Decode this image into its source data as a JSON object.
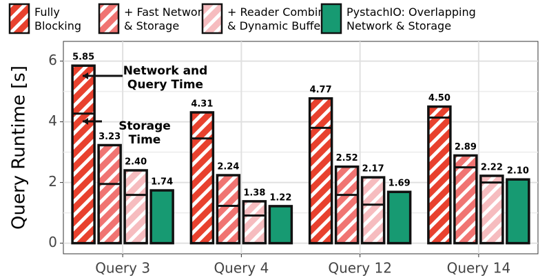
{
  "chart_data": {
    "type": "bar",
    "y_label": "Query Runtime [s]",
    "categories": [
      "Query 3",
      "Query 4",
      "Query 12",
      "Query 14"
    ],
    "series": [
      {
        "name": "Fully\nBlocking",
        "color": "#e8412e",
        "hatch": true,
        "values": [
          5.85,
          4.31,
          4.77,
          4.5
        ],
        "value_labels": [
          "5.85",
          "4.31",
          "4.77",
          "4.50"
        ],
        "storage_time": [
          4.27,
          3.45,
          3.8,
          4.14
        ]
      },
      {
        "name": "+ Fast Network\n& Storage",
        "color": "#f07472",
        "hatch": true,
        "values": [
          3.23,
          2.24,
          2.52,
          2.89
        ],
        "value_labels": [
          "3.23",
          "2.24",
          "2.52",
          "2.89"
        ],
        "storage_time": [
          1.95,
          1.23,
          1.59,
          2.5
        ]
      },
      {
        "name": "+ Reader Combining\n& Dynamic Buffering",
        "color": "#f6bcbf",
        "hatch": true,
        "values": [
          2.4,
          1.38,
          2.17,
          2.22
        ],
        "value_labels": [
          "2.40",
          "1.38",
          "2.17",
          "2.22"
        ],
        "storage_time": [
          1.59,
          0.91,
          1.27,
          2.0
        ]
      },
      {
        "name": "PystachIO: Overlapping\nNetwork & Storage",
        "color": "#179a72",
        "hatch": false,
        "values": [
          1.74,
          1.22,
          1.69,
          2.1
        ],
        "value_labels": [
          "1.74",
          "1.22",
          "1.69",
          "2.10"
        ]
      }
    ],
    "annotations": [
      "Network and\nQuery Time",
      "Storage\nTime"
    ],
    "ylim": [
      -0.35,
      6.65
    ],
    "yticks": [
      0,
      2,
      4,
      6
    ],
    "minor_yticks": [
      1,
      3,
      5
    ],
    "grid": true
  }
}
